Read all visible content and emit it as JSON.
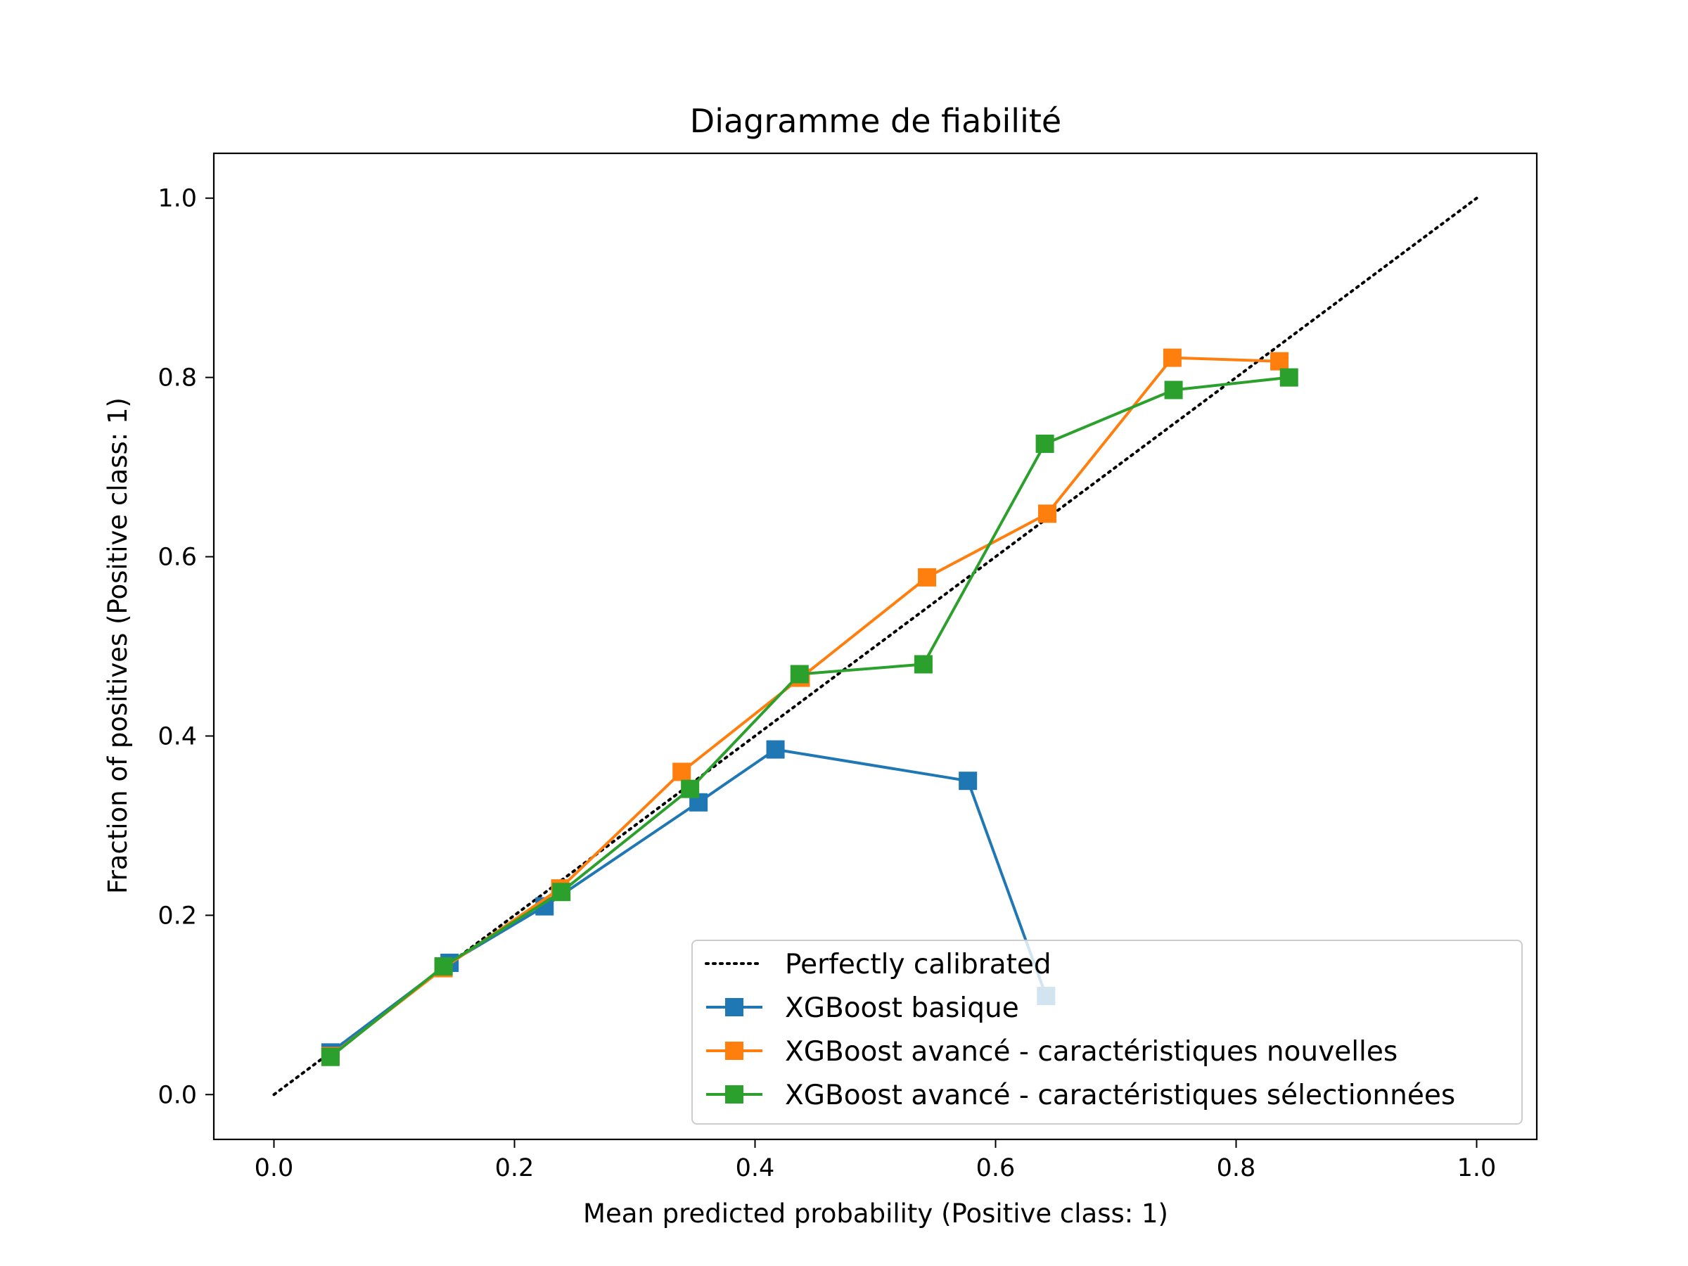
{
  "chart_data": {
    "type": "line",
    "title": "Diagramme de fiabilité",
    "xlabel": "Mean predicted probability (Positive class: 1)",
    "ylabel": "Fraction of positives (Positive class: 1)",
    "xlim": [
      -0.05,
      1.05
    ],
    "ylim": [
      -0.05,
      1.05
    ],
    "xticks": [
      "0.0",
      "0.2",
      "0.4",
      "0.6",
      "0.8",
      "1.0"
    ],
    "yticks": [
      "0.0",
      "0.2",
      "0.4",
      "0.6",
      "0.8",
      "1.0"
    ],
    "grid": false,
    "legend_position": "lower right",
    "reference": {
      "name": "Perfectly calibrated",
      "x": [
        0,
        1
      ],
      "y": [
        0,
        1
      ],
      "color": "#000000",
      "style": "dotted"
    },
    "series": [
      {
        "name": "XGBoost basique",
        "color": "#1f77b4",
        "x": [
          0.047,
          0.146,
          0.225,
          0.353,
          0.417,
          0.577,
          0.642
        ],
        "y": [
          0.047,
          0.147,
          0.21,
          0.326,
          0.385,
          0.35,
          0.11
        ]
      },
      {
        "name": "XGBoost avancé - caractéristiques nouvelles",
        "color": "#ff7f0e",
        "x": [
          0.047,
          0.141,
          0.238,
          0.339,
          0.438,
          0.543,
          0.643,
          0.747,
          0.836
        ],
        "y": [
          0.043,
          0.141,
          0.23,
          0.36,
          0.465,
          0.577,
          0.648,
          0.822,
          0.818
        ]
      },
      {
        "name": "XGBoost avancé - caractéristiques sélectionnées",
        "color": "#2ca02c",
        "x": [
          0.047,
          0.141,
          0.239,
          0.346,
          0.437,
          0.54,
          0.641,
          0.748,
          0.844
        ],
        "y": [
          0.042,
          0.143,
          0.226,
          0.341,
          0.469,
          0.48,
          0.726,
          0.786,
          0.8
        ]
      }
    ]
  }
}
